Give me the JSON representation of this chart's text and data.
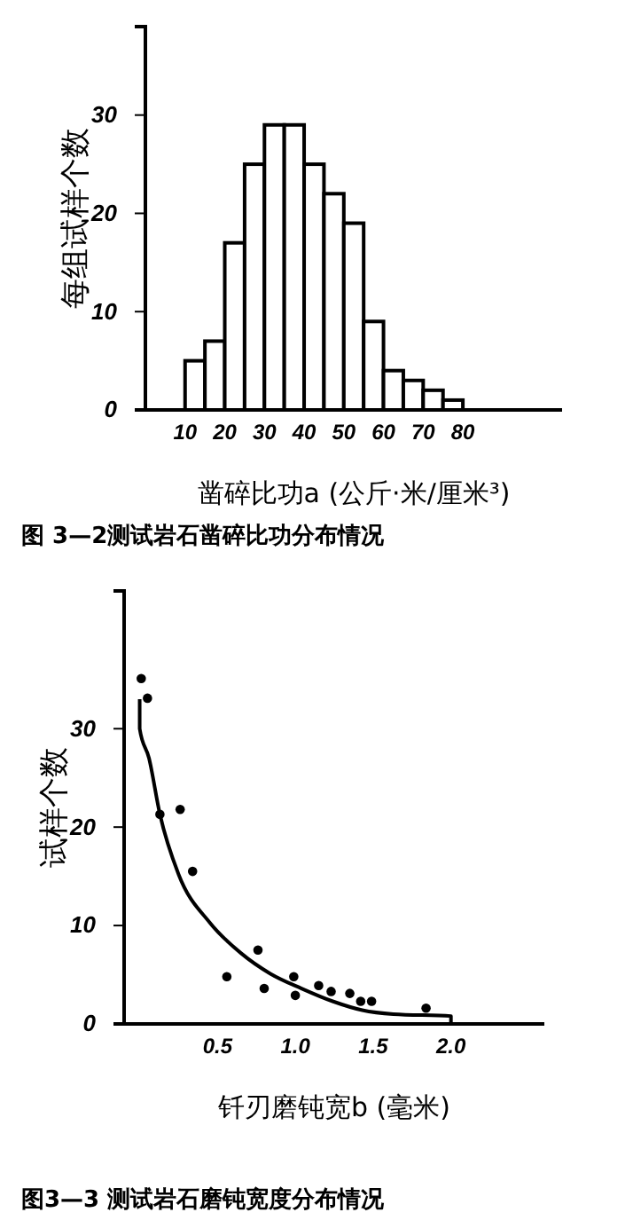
{
  "chart_data": [
    {
      "type": "histogram",
      "xlabel": "凿碎比功a (公斤·米/厘米³)",
      "ylabel": "每组试样个数",
      "bins": [
        10,
        15,
        20,
        25,
        30,
        35,
        40,
        45,
        50,
        55,
        60,
        65,
        70,
        75,
        80
      ],
      "values": [
        5,
        7,
        17,
        25,
        29,
        29,
        25,
        22,
        19,
        9,
        4,
        3,
        2,
        1
      ],
      "color": "#ffffff",
      "xlim": [
        0,
        105
      ],
      "ylim": [
        0,
        39
      ],
      "xticks": [
        10,
        20,
        30,
        40,
        50,
        60,
        70,
        80
      ],
      "yticks": [
        0,
        10,
        20,
        30
      ],
      "grid": false,
      "annotations": [
        "图 3—2测试岩石凿碎比功分布情况"
      ]
    },
    {
      "type": "scatter",
      "xlabel": "钎刃磨钝宽b (毫米)",
      "ylabel": "试样个数",
      "xlim": [
        -0.1,
        2.6
      ],
      "ylim": [
        0,
        44
      ],
      "xticks": [
        0.5,
        {
          "value": 1,
          "label": "1.0"
        },
        1.5,
        {
          "value": 2,
          "label": "2.0"
        }
      ],
      "yticks": [
        0,
        10,
        20,
        30
      ],
      "grid": false,
      "annotations": [
        "图3—3 测试岩石磨钝宽度分布情况"
      ],
      "series": [
        {
          "type": "scatter",
          "color": "#000000",
          "marker": "circle",
          "x": [
            0.01,
            0.05,
            0.13,
            0.26,
            0.34,
            0.56,
            0.76,
            0.8,
            0.99,
            1.0,
            1.15,
            1.23,
            1.35,
            1.42,
            1.49,
            1.84
          ],
          "values": [
            35.1,
            33.1,
            21.3,
            21.8,
            15.5,
            4.8,
            7.5,
            3.6,
            4.8,
            2.9,
            3.9,
            3.3,
            3.1,
            2.3,
            2.3,
            1.6
          ]
        },
        {
          "type": "line",
          "color": "#000000",
          "marker": "none",
          "line_style": "solid",
          "x": [
            0,
            0,
            0.06,
            0.13,
            0.25,
            0.45,
            0.65,
            0.84,
            1.04,
            1.24,
            1.43,
            1.63,
            2.0,
            2.0
          ],
          "values": [
            33,
            30,
            27,
            21.3,
            15.2,
            10.3,
            7.2,
            5.1,
            3.6,
            2.3,
            1.4,
            1.0,
            0.8,
            0
          ]
        }
      ]
    }
  ]
}
